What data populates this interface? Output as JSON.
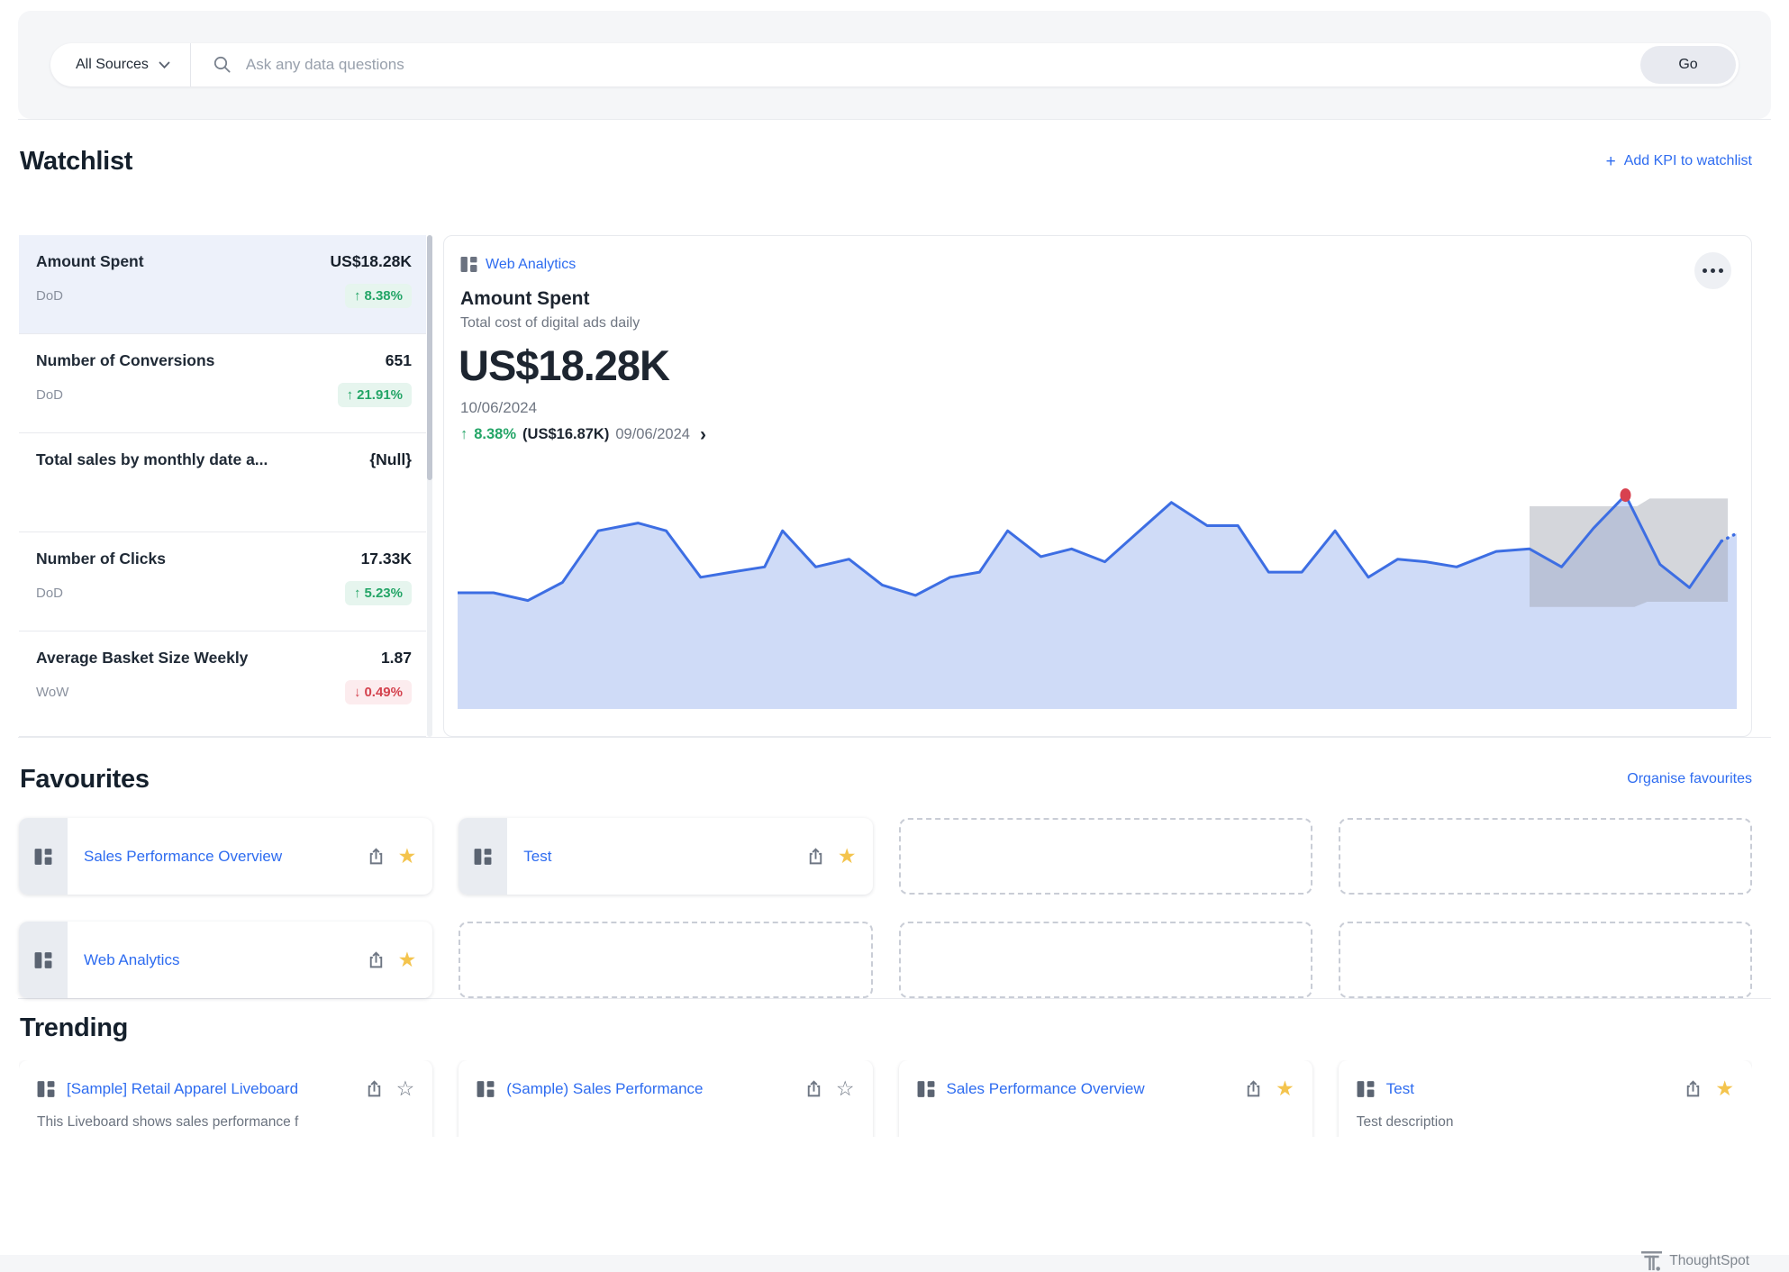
{
  "search": {
    "source_label": "All Sources",
    "placeholder": "Ask any data questions",
    "go_label": "Go"
  },
  "watchlist": {
    "title": "Watchlist",
    "add_link": "Add KPI to watchlist",
    "plus_glyph": "+",
    "items": [
      {
        "name": "Amount Spent",
        "value": "US$18.28K",
        "period": "DoD",
        "arrow": "↑",
        "change": "8.38%",
        "direction": "up",
        "selected": true
      },
      {
        "name": "Number of Conversions",
        "value": "651",
        "period": "DoD",
        "arrow": "↑",
        "change": "21.91%",
        "direction": "up",
        "selected": false
      },
      {
        "name": "Total sales by monthly date a...",
        "value": "{Null}",
        "period": "",
        "arrow": "",
        "change": "",
        "direction": "none",
        "selected": false
      },
      {
        "name": "Number of Clicks",
        "value": "17.33K",
        "period": "DoD",
        "arrow": "↑",
        "change": "5.23%",
        "direction": "up",
        "selected": false
      },
      {
        "name": "Average Basket Size Weekly",
        "value": "1.87",
        "period": "WoW",
        "arrow": "↓",
        "change": "0.49%",
        "direction": "down",
        "selected": false
      }
    ]
  },
  "kpi_detail": {
    "source": "Web Analytics",
    "title": "Amount Spent",
    "subtitle": "Total cost of digital ads daily",
    "value": "US$18.28K",
    "date": "10/06/2024",
    "arrow": "↑",
    "change": "8.38%",
    "prev_value": "(US$16.87K)",
    "prev_date": "09/06/2024",
    "chevron": "›"
  },
  "chart_data": {
    "type": "area",
    "title": "Amount Spent",
    "subtitle": "Total cost of digital ads daily",
    "unit": "US$K",
    "ylim": [
      10,
      19
    ],
    "x_axis": "daily dates (ticks not shown)",
    "grid": false,
    "legend": false,
    "current": {
      "date": "10/06/2024",
      "value_k": 18.28
    },
    "previous": {
      "date": "09/06/2024",
      "value_k": 16.87
    },
    "change_pct": "+8.38%",
    "series": [
      {
        "name": "Amount Spent (US$K)",
        "points": [
          [
            0.0,
            14.5
          ],
          [
            0.028,
            14.5
          ],
          [
            0.055,
            14.2
          ],
          [
            0.082,
            14.9
          ],
          [
            0.11,
            16.9
          ],
          [
            0.141,
            17.2
          ],
          [
            0.163,
            16.9
          ],
          [
            0.19,
            15.1
          ],
          [
            0.214,
            15.3
          ],
          [
            0.24,
            15.5
          ],
          [
            0.254,
            16.9
          ],
          [
            0.28,
            15.5
          ],
          [
            0.306,
            15.8
          ],
          [
            0.332,
            14.8
          ],
          [
            0.358,
            14.4
          ],
          [
            0.385,
            15.1
          ],
          [
            0.408,
            15.3
          ],
          [
            0.43,
            16.9
          ],
          [
            0.456,
            15.9
          ],
          [
            0.48,
            16.2
          ],
          [
            0.506,
            15.7
          ],
          [
            0.558,
            18.0
          ],
          [
            0.586,
            17.1
          ],
          [
            0.61,
            17.1
          ],
          [
            0.634,
            15.3
          ],
          [
            0.66,
            15.3
          ],
          [
            0.686,
            16.9
          ],
          [
            0.712,
            15.1
          ],
          [
            0.735,
            15.8
          ],
          [
            0.757,
            15.7
          ],
          [
            0.781,
            15.5
          ],
          [
            0.812,
            16.1
          ],
          [
            0.838,
            16.2
          ],
          [
            0.863,
            15.5
          ],
          [
            0.888,
            17.0
          ],
          [
            0.913,
            18.28
          ],
          [
            0.94,
            15.6
          ],
          [
            0.963,
            14.7
          ],
          [
            0.988,
            16.5
          ],
          [
            1.0,
            16.8
          ]
        ]
      }
    ],
    "dashed_from": 38,
    "highlight": {
      "x": 0.913,
      "value": 18.28,
      "note": "red anomaly dot at current peak"
    },
    "band": {
      "note": "gray expected-range band over last days",
      "polygon": [
        [
          0.838,
          17.85
        ],
        [
          0.922,
          17.85
        ],
        [
          0.932,
          18.15
        ],
        [
          0.993,
          18.15
        ],
        [
          0.993,
          14.15
        ],
        [
          0.93,
          14.15
        ],
        [
          0.92,
          13.95
        ],
        [
          0.838,
          13.95
        ]
      ]
    },
    "colors": {
      "line": "#3d6ee3",
      "fill": "#cfdbf7",
      "band": "rgba(160,165,175,0.45)",
      "dot": "#d8414f"
    }
  },
  "favourites": {
    "title": "Favourites",
    "organise_link": "Organise favourites",
    "cards": [
      {
        "title": "Sales Performance Overview",
        "star": "★"
      },
      {
        "title": "Test",
        "star": "★"
      },
      {
        "title": "Web Analytics",
        "star": "★"
      }
    ]
  },
  "trending": {
    "title": "Trending",
    "cards": [
      {
        "title": "[Sample] Retail Apparel Liveboard",
        "description": "This Liveboard shows sales performance f",
        "star": "☆",
        "starred": false
      },
      {
        "title": "(Sample) Sales Performance",
        "description": "",
        "star": "☆",
        "starred": false
      },
      {
        "title": "Sales Performance Overview",
        "description": "",
        "star": "★",
        "starred": true
      },
      {
        "title": "Test",
        "description": "Test description",
        "star": "★",
        "starred": true
      }
    ]
  },
  "footer": {
    "brand": "ThoughtSpot"
  },
  "colors": {
    "accent_blue": "#2e6cf0",
    "text_dark": "#1c2530",
    "text_gray": "#6f7682",
    "green": "#24a567",
    "green_bg": "#e6f5ee",
    "red": "#d4424e",
    "red_bg": "#fcecee",
    "selected_row_bg": "#edf1fa",
    "section_bg": "#f5f6f8",
    "star_yellow": "#f4c44d",
    "chart_line": "#3d6ee3",
    "chart_fill": "#cfdbf7",
    "anomaly_dot": "#d8414f"
  }
}
